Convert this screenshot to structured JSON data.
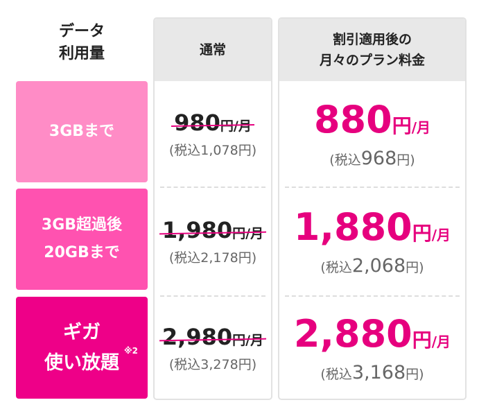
{
  "header": {
    "data_label": "データ\n利用量",
    "regular": "通常",
    "discount": "割引適用後の\n月々のプラン料金"
  },
  "rows": [
    {
      "label": "3GBまで",
      "color": "#ff8cc6",
      "regular_price": "980",
      "regular_tax": "(税込1,078円)",
      "discount_price": "880",
      "discount_tax_prefix": "(税込",
      "discount_tax_amount": "968",
      "discount_tax_suffix": "円)"
    },
    {
      "label": "3GB超過後\n20GBまで",
      "color": "#ff52b0",
      "regular_price": "1,980",
      "regular_tax": "(税込2,178円)",
      "discount_price": "1,880",
      "discount_tax_prefix": "(税込",
      "discount_tax_amount": "2,068",
      "discount_tax_suffix": "円)"
    },
    {
      "label": "ギガ\n使い放題",
      "note": "※2",
      "color": "#ee0088",
      "regular_price": "2,980",
      "regular_tax": "(税込3,278円)",
      "discount_price": "2,880",
      "discount_tax_prefix": "(税込",
      "discount_tax_amount": "3,168",
      "discount_tax_suffix": "円)"
    }
  ],
  "units": {
    "yen": "円",
    "per_month": "/月"
  },
  "accent": "#e6007e"
}
